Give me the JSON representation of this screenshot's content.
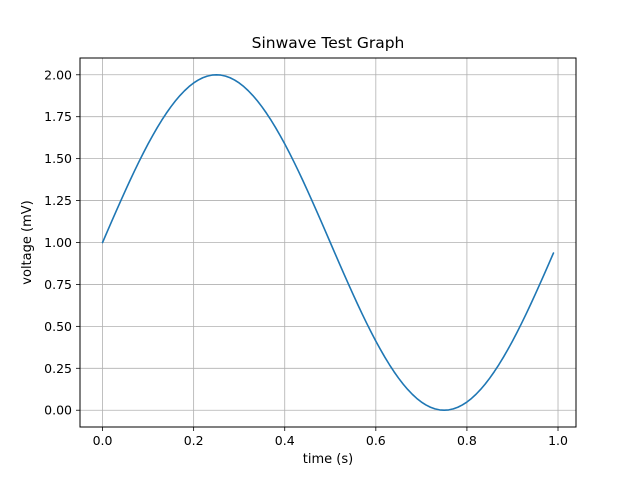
{
  "chart_data": {
    "type": "line",
    "title": "Sinwave Test Graph",
    "xlabel": "time (s)",
    "ylabel": "voltage (mV)",
    "xlim": [
      -0.0495,
      1.0395
    ],
    "ylim": [
      -0.1,
      2.1
    ],
    "grid": true,
    "legend": "none",
    "x_ticks": [
      {
        "value": 0.0,
        "label": "0.0"
      },
      {
        "value": 0.2,
        "label": "0.2"
      },
      {
        "value": 0.4,
        "label": "0.4"
      },
      {
        "value": 0.6,
        "label": "0.6"
      },
      {
        "value": 0.8,
        "label": "0.8"
      },
      {
        "value": 1.0,
        "label": "1.0"
      }
    ],
    "y_ticks": [
      {
        "value": 0.0,
        "label": "0.00"
      },
      {
        "value": 0.25,
        "label": "0.25"
      },
      {
        "value": 0.5,
        "label": "0.50"
      },
      {
        "value": 0.75,
        "label": "0.75"
      },
      {
        "value": 1.0,
        "label": "1.00"
      },
      {
        "value": 1.25,
        "label": "1.25"
      },
      {
        "value": 1.5,
        "label": "1.50"
      },
      {
        "value": 1.75,
        "label": "1.75"
      },
      {
        "value": 2.0,
        "label": "2.00"
      }
    ],
    "series": [
      {
        "color": "#1f77b4",
        "x": [
          0.0,
          0.01,
          0.02,
          0.03,
          0.04,
          0.05,
          0.06,
          0.07,
          0.08,
          0.09,
          0.1,
          0.11,
          0.12,
          0.13,
          0.14,
          0.15,
          0.16,
          0.17,
          0.18,
          0.19,
          0.2,
          0.21,
          0.22,
          0.23,
          0.24,
          0.25,
          0.26,
          0.27,
          0.28,
          0.29,
          0.3,
          0.31,
          0.32,
          0.33,
          0.34,
          0.35,
          0.36,
          0.37,
          0.38,
          0.39,
          0.4,
          0.41,
          0.42,
          0.43,
          0.44,
          0.45,
          0.46,
          0.47,
          0.48,
          0.49,
          0.5,
          0.51,
          0.52,
          0.53,
          0.54,
          0.55,
          0.56,
          0.57,
          0.58,
          0.59,
          0.6,
          0.61,
          0.62,
          0.63,
          0.64,
          0.65,
          0.66,
          0.67,
          0.68,
          0.69,
          0.7,
          0.71,
          0.72,
          0.73,
          0.74,
          0.75,
          0.76,
          0.77,
          0.78,
          0.79,
          0.8,
          0.81,
          0.82,
          0.83,
          0.84,
          0.85,
          0.86,
          0.87,
          0.88,
          0.89,
          0.9,
          0.91,
          0.92,
          0.93,
          0.94,
          0.95,
          0.96,
          0.97,
          0.98,
          0.99
        ],
        "y": [
          1.0,
          1.0628,
          1.1253,
          1.1874,
          1.2487,
          1.309,
          1.3681,
          1.4258,
          1.4818,
          1.5358,
          1.5878,
          1.6374,
          1.6845,
          1.729,
          1.7705,
          1.809,
          1.8443,
          1.8763,
          1.9048,
          1.9298,
          1.9511,
          1.9686,
          1.9823,
          1.9921,
          1.998,
          2.0,
          1.998,
          1.9921,
          1.9823,
          1.9686,
          1.9511,
          1.9298,
          1.9048,
          1.8763,
          1.8443,
          1.809,
          1.7705,
          1.729,
          1.6845,
          1.6374,
          1.5878,
          1.5358,
          1.4818,
          1.4258,
          1.3681,
          1.309,
          1.2487,
          1.1874,
          1.1253,
          1.0628,
          1.0,
          0.9372,
          0.8747,
          0.8126,
          0.7513,
          0.691,
          0.6319,
          0.5742,
          0.5182,
          0.4642,
          0.4122,
          0.3626,
          0.3155,
          0.271,
          0.2295,
          0.191,
          0.1557,
          0.1237,
          0.0952,
          0.0702,
          0.0489,
          0.0314,
          0.0177,
          0.0079,
          0.002,
          0.0,
          0.002,
          0.0079,
          0.0177,
          0.0314,
          0.0489,
          0.0702,
          0.0952,
          0.1237,
          0.1557,
          0.191,
          0.2295,
          0.271,
          0.3155,
          0.3626,
          0.4122,
          0.4642,
          0.5182,
          0.5742,
          0.6319,
          0.691,
          0.7513,
          0.8126,
          0.8747,
          0.9372
        ]
      }
    ]
  },
  "colors": {
    "line": "#1f77b4",
    "grid": "#b0b0b0",
    "axes": "#000000",
    "background": "#ffffff"
  }
}
